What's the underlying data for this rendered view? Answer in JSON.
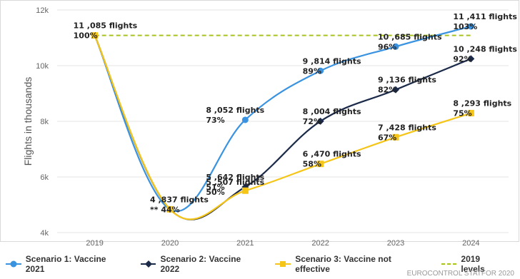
{
  "chart_data": {
    "type": "line",
    "categories": [
      "2019",
      "2020",
      "2021",
      "2022",
      "2023",
      "2024"
    ],
    "ylabel": "Flights in thousands",
    "ylim": [
      4,
      12
    ],
    "yticks": [
      "4k",
      "6k",
      "8k",
      "10k",
      "12k"
    ],
    "grid": true,
    "legend_position": "bottom",
    "series": [
      {
        "name": "Scenario 1: Vaccine 2021",
        "color": "#3a93e0",
        "marker": "circle",
        "values": [
          11.085,
          4.837,
          8.052,
          9.814,
          10.685,
          11.411
        ],
        "labels": [
          "",
          "",
          "8 ,052 flights",
          "9 ,814 flights",
          "10 ,685 flights",
          "11 ,411 flights"
        ],
        "pcts": [
          "",
          "",
          "73%",
          "89%",
          "96%",
          "103%"
        ]
      },
      {
        "name": "Scenario 2: Vaccine 2022",
        "color": "#1b2a49",
        "marker": "diamond",
        "values": [
          11.085,
          4.837,
          5.642,
          8.004,
          9.136,
          10.248
        ],
        "labels": [
          "",
          "",
          "5 ,642 flights",
          "8 ,004 flights",
          "9 ,136 flights",
          "10 ,248 flights"
        ],
        "pcts": [
          "",
          "",
          "51%",
          "72%",
          "82%",
          "92%"
        ]
      },
      {
        "name": "Scenario 3: Vaccine not effective",
        "color": "#f5c518",
        "marker": "square",
        "values": [
          11.085,
          4.837,
          5.507,
          6.47,
          7.428,
          8.293
        ],
        "labels": [
          "11 ,085 flights",
          "4 ,837 flights",
          "5 ,507 flights",
          "6 ,470 flights",
          "7 ,428 flights",
          "8 ,293 flights"
        ],
        "pcts": [
          "100%",
          "** 44%",
          "50%",
          "58%",
          "67%",
          "75%"
        ]
      }
    ],
    "reference_line": {
      "name": "2019 levels",
      "color": "#a8c41c",
      "value": 11.085,
      "dashed": true
    }
  },
  "legend": {
    "s1": "Scenario 1: Vaccine 2021",
    "s2": "Scenario 2: Vaccine 2022",
    "s3": "Scenario 3: Vaccine not effective",
    "ref": "2019 levels"
  },
  "credit": "EUROCONTROL STATFOR 2020"
}
